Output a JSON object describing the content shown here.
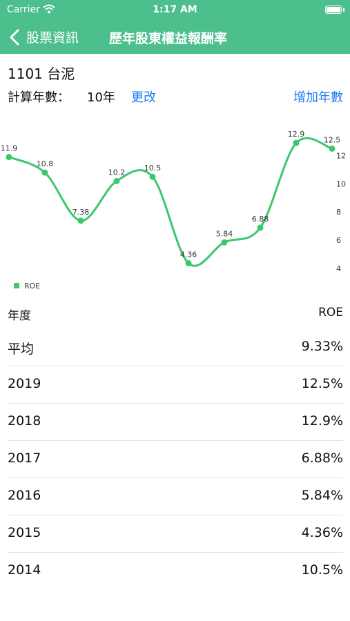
{
  "status_bar": {
    "carrier": "Carrier",
    "time": "1:17 AM"
  },
  "nav": {
    "back_label": "股票資訊",
    "title": "歷年股東權益報酬率"
  },
  "stock": {
    "name": "1101 台泥"
  },
  "calc": {
    "label": "計算年數：",
    "value": "10年",
    "change_label": "更改",
    "add_label": "增加年數"
  },
  "colors": {
    "accent": "#4dbf8d",
    "line": "#3cc76d",
    "link": "#1f7cf2"
  },
  "icons": {
    "back": "chevron-left-icon",
    "wifi": "wifi-icon",
    "battery": "battery-icon",
    "legend": "legend-swatch"
  },
  "chart_data": {
    "type": "line",
    "legend": "ROE",
    "legend_position": "bottom-left",
    "grid": false,
    "ylim": [
      3.5,
      13.5
    ],
    "y_ticks": [
      "4",
      "6",
      "8",
      "10",
      "12"
    ],
    "series": [
      {
        "name": "ROE",
        "values": [
          11.9,
          10.8,
          7.38,
          10.2,
          10.5,
          4.36,
          5.84,
          6.88,
          12.9,
          12.5
        ],
        "labels": [
          "11.9",
          "10.8",
          "7.38",
          "10.2",
          "10.5",
          "4.36",
          "5.84",
          "6.88",
          "12.9",
          "12.5"
        ]
      }
    ]
  },
  "table": {
    "headers": [
      "年度",
      "ROE"
    ],
    "rows": [
      {
        "year": "平均",
        "roe": "9.33%"
      },
      {
        "year": "2019",
        "roe": "12.5%"
      },
      {
        "year": "2018",
        "roe": "12.9%"
      },
      {
        "year": "2017",
        "roe": "6.88%"
      },
      {
        "year": "2016",
        "roe": "5.84%"
      },
      {
        "year": "2015",
        "roe": "4.36%"
      },
      {
        "year": "2014",
        "roe": "10.5%"
      }
    ]
  }
}
